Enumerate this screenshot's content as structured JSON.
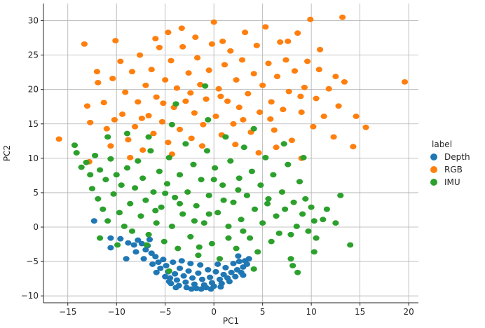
{
  "chart_data": {
    "type": "scatter",
    "title": "",
    "xlabel": "PC1",
    "ylabel": "PC2",
    "xlim": [
      -17.5,
      21
    ],
    "ylim": [
      -11,
      32.5
    ],
    "xticks": [
      -15,
      -10,
      -5,
      0,
      5,
      10,
      15,
      20
    ],
    "yticks": [
      -10,
      -5,
      0,
      5,
      10,
      15,
      20,
      25,
      30
    ],
    "grid": true,
    "legend": {
      "title": "label",
      "placement": "outside-right",
      "entries": [
        "Depth",
        "RGB",
        "IMU"
      ]
    },
    "series": [
      {
        "name": "Depth",
        "color": "#1f77b4",
        "points": [
          [
            -12.3,
            0.9
          ],
          [
            -10.6,
            -1.6
          ],
          [
            -10.6,
            -3.0
          ],
          [
            -9.6,
            -1.7
          ],
          [
            -8.8,
            -2.3
          ],
          [
            -9.0,
            -4.6
          ],
          [
            -8.2,
            -2.6
          ],
          [
            -7.8,
            -1.9
          ],
          [
            -7.4,
            -2.4
          ],
          [
            -7.0,
            -3.3
          ],
          [
            -6.6,
            -1.8
          ],
          [
            -6.4,
            -3.8
          ],
          [
            -6.0,
            -4.3
          ],
          [
            -5.7,
            -5.1
          ],
          [
            -5.5,
            -6.0
          ],
          [
            -5.2,
            -4.7
          ],
          [
            -4.9,
            -5.6
          ],
          [
            -4.7,
            -6.5
          ],
          [
            -4.5,
            -7.4
          ],
          [
            -4.4,
            -8.2
          ],
          [
            -4.2,
            -5.1
          ],
          [
            -4.0,
            -6.8
          ],
          [
            -3.8,
            -7.7
          ],
          [
            -3.6,
            -8.5
          ],
          [
            -3.5,
            -6.0
          ],
          [
            -3.3,
            -4.9
          ],
          [
            -3.1,
            -7.1
          ],
          [
            -2.9,
            -8.0
          ],
          [
            -2.8,
            -8.8
          ],
          [
            -2.6,
            -6.4
          ],
          [
            -2.4,
            -5.3
          ],
          [
            -2.2,
            -7.4
          ],
          [
            -2.0,
            -8.3
          ],
          [
            -1.8,
            -8.9
          ],
          [
            -1.6,
            -6.7
          ],
          [
            -1.4,
            -5.5
          ],
          [
            -1.2,
            -7.6
          ],
          [
            -1.0,
            -8.4
          ],
          [
            -0.8,
            -8.8
          ],
          [
            -0.6,
            -6.2
          ],
          [
            -0.4,
            -7.3
          ],
          [
            -0.2,
            -8.1
          ],
          [
            0.0,
            -8.6
          ],
          [
            0.2,
            -6.5
          ],
          [
            0.4,
            -5.4
          ],
          [
            0.6,
            -7.6
          ],
          [
            0.8,
            -8.2
          ],
          [
            1.0,
            -6.9
          ],
          [
            1.2,
            -5.9
          ],
          [
            1.4,
            -7.4
          ],
          [
            1.6,
            -7.9
          ],
          [
            1.8,
            -6.6
          ],
          [
            2.0,
            -5.3
          ],
          [
            2.2,
            -7.2
          ],
          [
            2.4,
            -6.2
          ],
          [
            2.6,
            -5.0
          ],
          [
            2.8,
            -6.6
          ],
          [
            3.0,
            -5.8
          ],
          [
            3.2,
            -4.9
          ],
          [
            3.4,
            -5.4
          ],
          [
            3.6,
            -4.6
          ],
          [
            3.0,
            -7.0
          ],
          [
            -5.0,
            -7.2
          ],
          [
            -4.6,
            -7.9
          ],
          [
            -3.9,
            -8.8
          ],
          [
            -2.3,
            -9.0
          ],
          [
            -1.3,
            -9.0
          ],
          [
            -0.3,
            -9.0
          ],
          [
            0.7,
            -8.7
          ],
          [
            -6.3,
            -5.4
          ],
          [
            -5.9,
            -6.6
          ],
          [
            -7.2,
            -4.6
          ],
          [
            -8.0,
            -3.6
          ],
          [
            -6.8,
            -2.7
          ],
          [
            2.5,
            -4.2
          ]
        ]
      },
      {
        "name": "RGB",
        "color": "#ff7f0e",
        "points": [
          [
            -15.9,
            12.8
          ],
          [
            -13.3,
            26.6
          ],
          [
            -13.0,
            17.6
          ],
          [
            -12.7,
            15.2
          ],
          [
            -12.8,
            9.5
          ],
          [
            -11.9,
            21.0
          ],
          [
            -11.3,
            18.1
          ],
          [
            -11.0,
            14.3
          ],
          [
            -10.4,
            21.6
          ],
          [
            -10.6,
            11.8
          ],
          [
            -9.6,
            24.1
          ],
          [
            -9.4,
            16.4
          ],
          [
            -9.1,
            19.6
          ],
          [
            -8.8,
            12.7
          ],
          [
            -8.4,
            22.6
          ],
          [
            -8.1,
            14.6
          ],
          [
            -7.8,
            18.2
          ],
          [
            -7.6,
            25.0
          ],
          [
            -7.3,
            11.2
          ],
          [
            -7.0,
            20.6
          ],
          [
            -6.7,
            16.2
          ],
          [
            -6.4,
            22.9
          ],
          [
            -6.2,
            13.6
          ],
          [
            -5.9,
            18.9
          ],
          [
            -5.6,
            26.1
          ],
          [
            -5.3,
            15.3
          ],
          [
            -5.0,
            21.4
          ],
          [
            -4.7,
            12.3
          ],
          [
            -4.4,
            24.2
          ],
          [
            -4.1,
            17.4
          ],
          [
            -4.7,
            28.3
          ],
          [
            -3.8,
            20.2
          ],
          [
            -3.5,
            14.2
          ],
          [
            -3.2,
            26.2
          ],
          [
            -2.9,
            18.3
          ],
          [
            -3.3,
            28.9
          ],
          [
            -2.6,
            22.4
          ],
          [
            -2.3,
            12.9
          ],
          [
            -2.0,
            16.6
          ],
          [
            -1.7,
            24.6
          ],
          [
            -1.4,
            20.7
          ],
          [
            -1.1,
            14.9
          ],
          [
            -0.8,
            18.6
          ],
          [
            -1.9,
            27.6
          ],
          [
            -0.5,
            22.8
          ],
          [
            -0.2,
            26.6
          ],
          [
            0.0,
            29.8
          ],
          [
            0.2,
            16.1
          ],
          [
            0.5,
            20.1
          ],
          [
            0.8,
            13.4
          ],
          [
            1.1,
            23.6
          ],
          [
            1.4,
            18.3
          ],
          [
            1.7,
            25.6
          ],
          [
            2.0,
            15.0
          ],
          [
            2.3,
            21.4
          ],
          [
            2.6,
            17.4
          ],
          [
            2.9,
            24.3
          ],
          [
            3.2,
            28.3
          ],
          [
            3.5,
            19.4
          ],
          [
            3.8,
            13.8
          ],
          [
            4.1,
            22.3
          ],
          [
            4.4,
            26.4
          ],
          [
            4.7,
            16.7
          ],
          [
            5.0,
            20.6
          ],
          [
            5.3,
            29.1
          ],
          [
            5.6,
            23.8
          ],
          [
            5.9,
            18.2
          ],
          [
            6.2,
            14.1
          ],
          [
            6.5,
            21.9
          ],
          [
            6.8,
            26.9
          ],
          [
            7.1,
            17.1
          ],
          [
            7.4,
            24.3
          ],
          [
            7.7,
            19.7
          ],
          [
            8.0,
            12.6
          ],
          [
            8.3,
            22.7
          ],
          [
            8.6,
            28.2
          ],
          [
            9.0,
            16.7
          ],
          [
            9.3,
            20.3
          ],
          [
            9.6,
            24.1
          ],
          [
            9.9,
            30.2
          ],
          [
            10.2,
            14.6
          ],
          [
            10.5,
            18.7
          ],
          [
            10.8,
            22.9
          ],
          [
            11.3,
            16.1
          ],
          [
            11.8,
            20.1
          ],
          [
            12.3,
            13.1
          ],
          [
            12.8,
            17.6
          ],
          [
            13.2,
            30.5
          ],
          [
            13.4,
            21.1
          ],
          [
            14.3,
            11.7
          ],
          [
            14.6,
            16.1
          ],
          [
            15.6,
            14.5
          ],
          [
            19.6,
            21.1
          ],
          [
            -12.0,
            22.6
          ],
          [
            -10.2,
            15.6
          ],
          [
            -7.4,
            15.8
          ],
          [
            -5.2,
            18.0
          ],
          [
            -2.4,
            19.5
          ],
          [
            0.7,
            19.0
          ],
          [
            3.0,
            15.6
          ],
          [
            5.8,
            15.7
          ],
          [
            8.9,
            19.0
          ],
          [
            -1.2,
            11.8
          ],
          [
            2.2,
            12.0
          ],
          [
            6.4,
            11.6
          ],
          [
            9.0,
            10.0
          ],
          [
            -4.3,
            10.6
          ],
          [
            -8.6,
            10.1
          ],
          [
            -6.0,
            27.4
          ],
          [
            0.9,
            27.0
          ],
          [
            7.6,
            27.0
          ],
          [
            10.9,
            25.8
          ],
          [
            -10.1,
            27.1
          ],
          [
            12.5,
            21.9
          ],
          [
            4.6,
            10.8
          ]
        ]
      },
      {
        "name": "IMU",
        "color": "#2ca02c",
        "points": [
          [
            -14.3,
            11.9
          ],
          [
            -14.1,
            10.8
          ],
          [
            -13.6,
            8.7
          ],
          [
            -13.1,
            9.4
          ],
          [
            -12.7,
            7.6
          ],
          [
            -12.5,
            5.6
          ],
          [
            -12.2,
            10.4
          ],
          [
            -11.9,
            4.1
          ],
          [
            -11.7,
            8.3
          ],
          [
            -11.4,
            2.6
          ],
          [
            -11.1,
            6.9
          ],
          [
            -10.9,
            0.9
          ],
          [
            -10.6,
            9.9
          ],
          [
            -10.3,
            4.8
          ],
          [
            -10.0,
            7.6
          ],
          [
            -9.7,
            2.1
          ],
          [
            -9.5,
            6.1
          ],
          [
            -9.2,
            0.1
          ],
          [
            -8.9,
            8.6
          ],
          [
            -8.6,
            3.4
          ],
          [
            -8.4,
            -0.6
          ],
          [
            -8.1,
            5.7
          ],
          [
            -7.8,
            9.6
          ],
          [
            -7.5,
            1.6
          ],
          [
            -7.3,
            7.1
          ],
          [
            -7.0,
            3.9
          ],
          [
            -6.7,
            -1.1
          ],
          [
            -6.5,
            11.1
          ],
          [
            -6.2,
            5.1
          ],
          [
            -5.9,
            0.6
          ],
          [
            -5.6,
            8.1
          ],
          [
            -5.4,
            2.9
          ],
          [
            -5.1,
            -2.1
          ],
          [
            -4.8,
            6.3
          ],
          [
            -4.6,
            10.1
          ],
          [
            -4.3,
            0.1
          ],
          [
            -4.0,
            4.3
          ],
          [
            -3.7,
            -3.1
          ],
          [
            -3.5,
            7.6
          ],
          [
            -3.2,
            1.9
          ],
          [
            -2.9,
            12.1
          ],
          [
            -2.7,
            5.1
          ],
          [
            -2.4,
            -1.4
          ],
          [
            -2.1,
            9.1
          ],
          [
            -1.8,
            3.1
          ],
          [
            -1.6,
            -4.1
          ],
          [
            -1.3,
            6.9
          ],
          [
            -1.0,
            0.6
          ],
          [
            -0.7,
            11.1
          ],
          [
            -0.5,
            4.6
          ],
          [
            -0.2,
            -2.4
          ],
          [
            0.1,
            8.6
          ],
          [
            0.4,
            2.1
          ],
          [
            0.6,
            -4.6
          ],
          [
            0.9,
            6.1
          ],
          [
            1.2,
            13.1
          ],
          [
            1.5,
            0.1
          ],
          [
            1.7,
            9.6
          ],
          [
            2.0,
            3.6
          ],
          [
            2.3,
            -3.1
          ],
          [
            2.6,
            7.1
          ],
          [
            2.8,
            1.1
          ],
          [
            3.1,
            11.6
          ],
          [
            3.4,
            4.6
          ],
          [
            3.7,
            -1.6
          ],
          [
            3.9,
            8.1
          ],
          [
            4.2,
            2.6
          ],
          [
            4.5,
            -3.6
          ],
          [
            4.8,
            6.1
          ],
          [
            5.0,
            0.6
          ],
          [
            5.3,
            10.1
          ],
          [
            5.6,
            4.1
          ],
          [
            5.9,
            -2.1
          ],
          [
            6.1,
            7.6
          ],
          [
            6.4,
            1.6
          ],
          [
            6.7,
            -0.9
          ],
          [
            7.0,
            5.1
          ],
          [
            7.3,
            2.6
          ],
          [
            7.6,
            9.1
          ],
          [
            7.9,
            -1.1
          ],
          [
            8.2,
            3.6
          ],
          [
            8.5,
            0.1
          ],
          [
            8.8,
            6.6
          ],
          [
            9.1,
            1.9
          ],
          [
            9.4,
            4.1
          ],
          [
            9.7,
            -0.6
          ],
          [
            10.0,
            2.9
          ],
          [
            10.3,
            0.9
          ],
          [
            10.5,
            -1.6
          ],
          [
            10.3,
            -3.6
          ],
          [
            11.2,
            1.1
          ],
          [
            11.6,
            2.6
          ],
          [
            12.5,
            0.6
          ],
          [
            13.0,
            4.6
          ],
          [
            14.0,
            -2.6
          ],
          [
            9.2,
            10.1
          ],
          [
            7.2,
            12.1
          ],
          [
            4.1,
            14.3
          ],
          [
            -0.6,
            15.6
          ],
          [
            -4.3,
            14.9
          ],
          [
            -6.7,
            13.1
          ],
          [
            -8.9,
            13.6
          ],
          [
            -10.9,
            13.1
          ],
          [
            -0.9,
            20.5
          ],
          [
            -3.9,
            17.9
          ],
          [
            -11.7,
            -1.6
          ],
          [
            -9.9,
            -2.6
          ],
          [
            7.9,
            -4.6
          ],
          [
            8.6,
            -6.6
          ],
          [
            8.1,
            -5.6
          ],
          [
            4.1,
            -6.1
          ],
          [
            -4.6,
            -6.4
          ],
          [
            -6.9,
            -2.6
          ],
          [
            -2.0,
            0.9
          ],
          [
            -0.5,
            1.9
          ],
          [
            1.0,
            3.9
          ],
          [
            2.5,
            5.4
          ],
          [
            -3.5,
            3.4
          ],
          [
            -5.0,
            4.9
          ],
          [
            0.0,
            6.9
          ],
          [
            1.5,
            -1.6
          ],
          [
            -1.5,
            -2.9
          ],
          [
            3.0,
            -0.6
          ],
          [
            -6.0,
            2.4
          ],
          [
            5.5,
            3.4
          ]
        ]
      }
    ]
  }
}
